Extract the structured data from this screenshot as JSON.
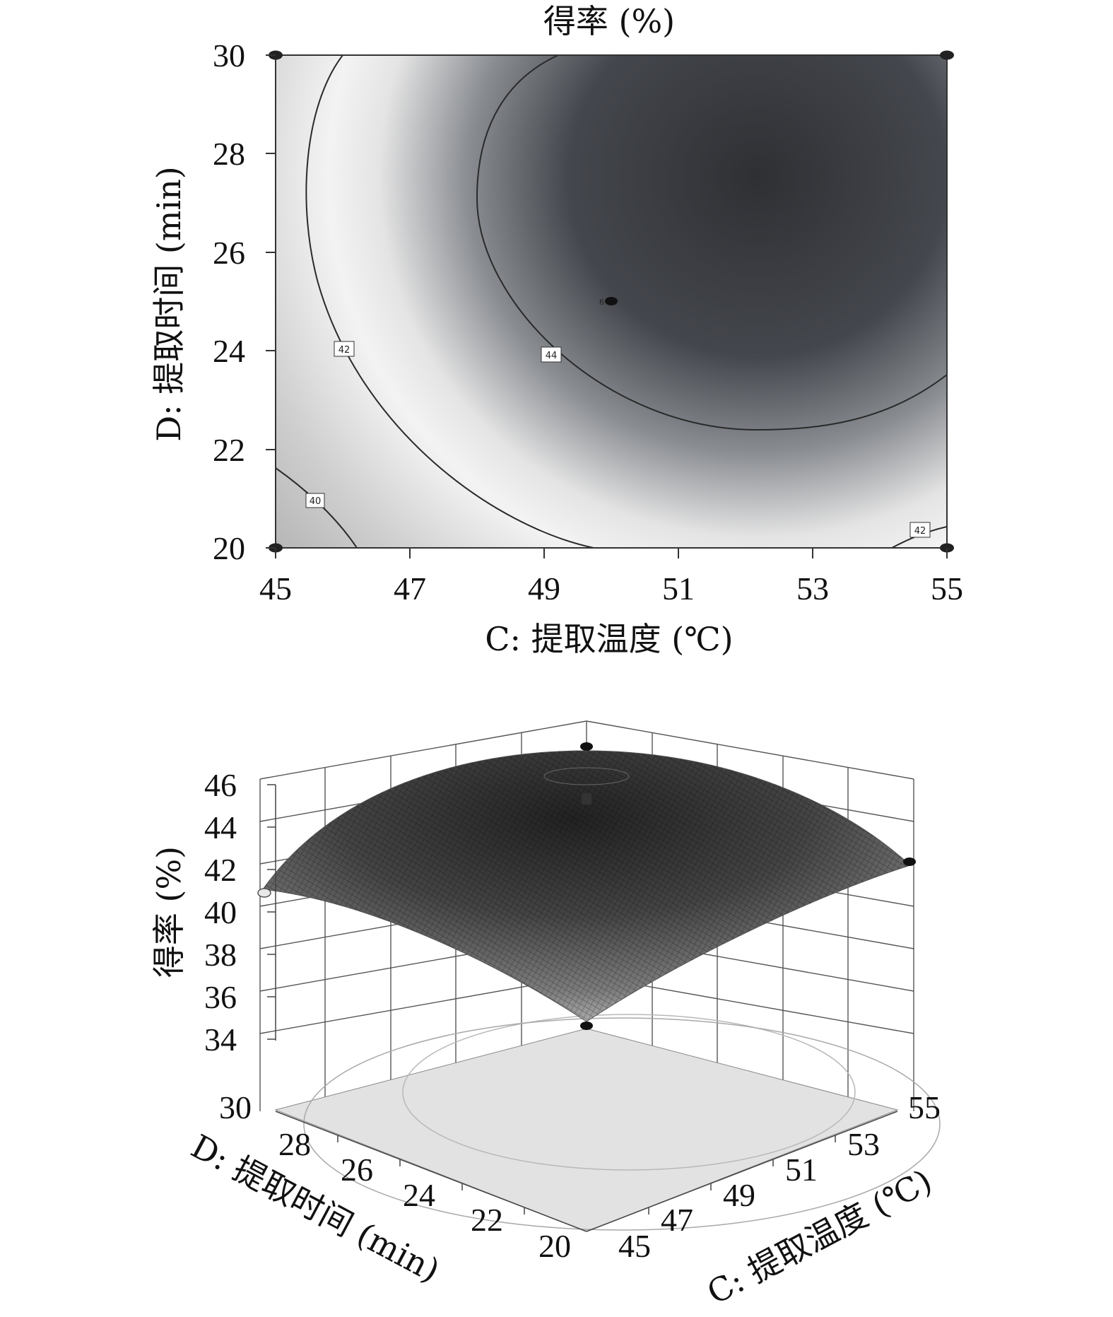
{
  "chart_data": [
    {
      "type": "contour",
      "title": "得率 (%)",
      "xlabel": "C: 提取温度 (℃)",
      "ylabel": "D: 提取时间 (min)",
      "xlim": [
        45,
        55
      ],
      "ylim": [
        20,
        30
      ],
      "x_ticks": [
        "45",
        "47",
        "49",
        "51",
        "53",
        "55"
      ],
      "y_ticks": [
        "20",
        "22",
        "24",
        "26",
        "28",
        "30"
      ],
      "center": {
        "x": 52.2,
        "y": 27.0
      },
      "contours": [
        {
          "level": "40",
          "label": "40"
        },
        {
          "level": "42",
          "label": "42"
        },
        {
          "level": "44",
          "label": "44"
        }
      ],
      "design_points": [
        {
          "x": 45,
          "y": 20
        },
        {
          "x": 45,
          "y": 30
        },
        {
          "x": 55,
          "y": 20
        },
        {
          "x": 55,
          "y": 30
        },
        {
          "x": 50,
          "y": 25,
          "label": "6"
        }
      ]
    },
    {
      "type": "surface",
      "zlabel": "得率 (%)",
      "xlabel": "C: 提取温度 (℃)",
      "ylabel": "D: 提取时间 (min)",
      "zlim": [
        34,
        46
      ],
      "z_ticks": [
        "34",
        "36",
        "38",
        "40",
        "42",
        "44",
        "46"
      ],
      "x_ticks": [
        "45",
        "47",
        "49",
        "51",
        "53",
        "55"
      ],
      "y_ticks": [
        "30",
        "28",
        "26",
        "24",
        "22",
        "20"
      ],
      "peak_value": 45.3
    }
  ]
}
